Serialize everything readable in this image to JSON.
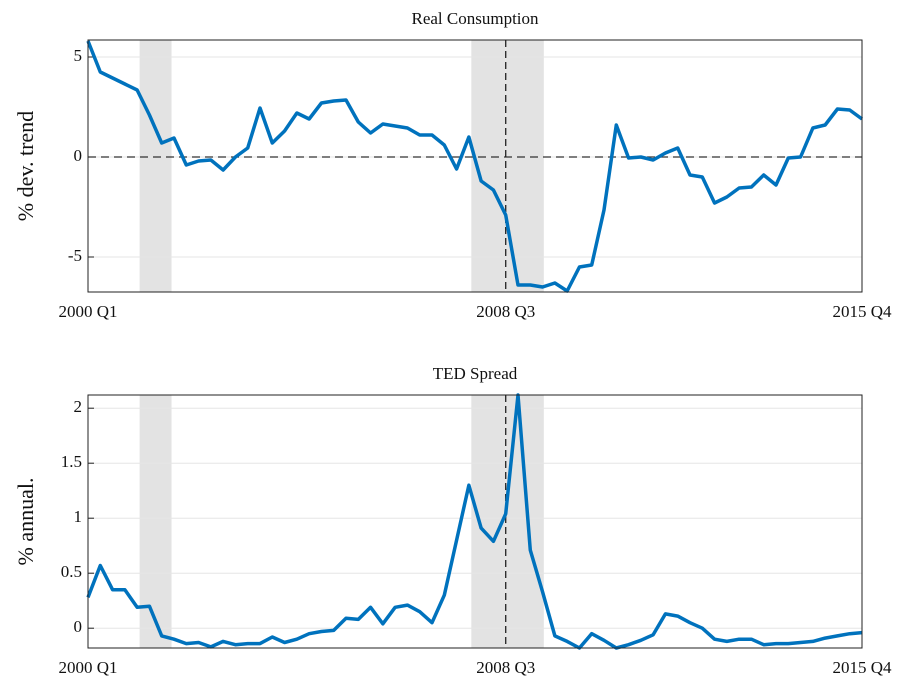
{
  "chart_data": [
    {
      "type": "line",
      "title": "Real Consumption",
      "ylabel": "% dev. trend",
      "categories": [
        "2000 Q1",
        null,
        null,
        null,
        null,
        null,
        null,
        null,
        null,
        null,
        null,
        null,
        null,
        null,
        null,
        null,
        null,
        null,
        null,
        null,
        null,
        null,
        null,
        null,
        null,
        null,
        null,
        null,
        null,
        null,
        null,
        null,
        null,
        null,
        "2008 Q3",
        null,
        null,
        null,
        null,
        null,
        null,
        null,
        null,
        null,
        null,
        null,
        null,
        null,
        null,
        null,
        null,
        null,
        null,
        null,
        null,
        null,
        null,
        null,
        null,
        null,
        null,
        null,
        null,
        "2015 Q4"
      ],
      "values": [
        5.8,
        4.25,
        3.95,
        3.65,
        3.35,
        2.1,
        0.7,
        0.95,
        -0.4,
        -0.2,
        -0.15,
        -0.65,
        0,
        0.45,
        2.45,
        0.7,
        1.3,
        2.2,
        1.9,
        2.7,
        2.8,
        2.85,
        1.75,
        1.2,
        1.65,
        1.55,
        1.45,
        1.1,
        1.1,
        0.6,
        -0.6,
        1.0,
        -1.2,
        -1.65,
        -2.9,
        -6.4,
        -6.4,
        -6.5,
        -6.3,
        -6.7,
        -5.5,
        -5.4,
        -2.65,
        1.6,
        -0.05,
        0,
        -0.15,
        0.2,
        0.45,
        -0.9,
        -1.0,
        -2.3,
        -2.0,
        -1.55,
        -1.5,
        -0.9,
        -1.4,
        -0.05,
        0,
        1.45,
        1.6,
        2.4,
        2.35,
        1.9
      ],
      "color": "#0072bd",
      "ylim": [
        -6.75,
        5.85
      ],
      "yticks": [
        -5,
        0,
        5
      ],
      "grid": true,
      "hline": 0,
      "vline": "2008 Q3",
      "shaded": [
        [
          4.2,
          6.8
        ],
        [
          31.2,
          37.1
        ]
      ]
    },
    {
      "type": "line",
      "title": "TED Spread",
      "ylabel": "% annual.",
      "categories": [
        "2000 Q1",
        null,
        null,
        null,
        null,
        null,
        null,
        null,
        null,
        null,
        null,
        null,
        null,
        null,
        null,
        null,
        null,
        null,
        null,
        null,
        null,
        null,
        null,
        null,
        null,
        null,
        null,
        null,
        null,
        null,
        null,
        null,
        null,
        null,
        "2008 Q3",
        null,
        null,
        null,
        null,
        null,
        null,
        null,
        null,
        null,
        null,
        null,
        null,
        null,
        null,
        null,
        null,
        null,
        null,
        null,
        null,
        null,
        null,
        null,
        null,
        null,
        null,
        null,
        null,
        "2015 Q4"
      ],
      "values": [
        0.28,
        0.57,
        0.35,
        0.35,
        0.19,
        0.2,
        -0.07,
        -0.1,
        -0.14,
        -0.13,
        -0.17,
        -0.12,
        -0.15,
        -0.14,
        -0.14,
        -0.08,
        -0.13,
        -0.1,
        -0.05,
        -0.03,
        -0.02,
        0.09,
        0.08,
        0.19,
        0.04,
        0.19,
        0.21,
        0.15,
        0.05,
        0.3,
        0.8,
        1.3,
        0.91,
        0.79,
        1.04,
        2.12,
        0.71,
        0.33,
        -0.07,
        -0.12,
        -0.18,
        -0.05,
        -0.11,
        -0.18,
        -0.15,
        -0.11,
        -0.06,
        0.13,
        0.11,
        0.05,
        0,
        -0.1,
        -0.12,
        -0.1,
        -0.1,
        -0.15,
        -0.14,
        -0.14,
        -0.13,
        -0.12,
        -0.09,
        -0.07,
        -0.05,
        -0.04
      ],
      "color": "#0072bd",
      "ylim": [
        -0.18,
        2.12
      ],
      "yticks": [
        0,
        0.5,
        1,
        1.5,
        2
      ],
      "grid": true,
      "vline": "2008 Q3",
      "shaded": [
        [
          4.2,
          6.8
        ],
        [
          31.2,
          37.1
        ]
      ]
    }
  ]
}
